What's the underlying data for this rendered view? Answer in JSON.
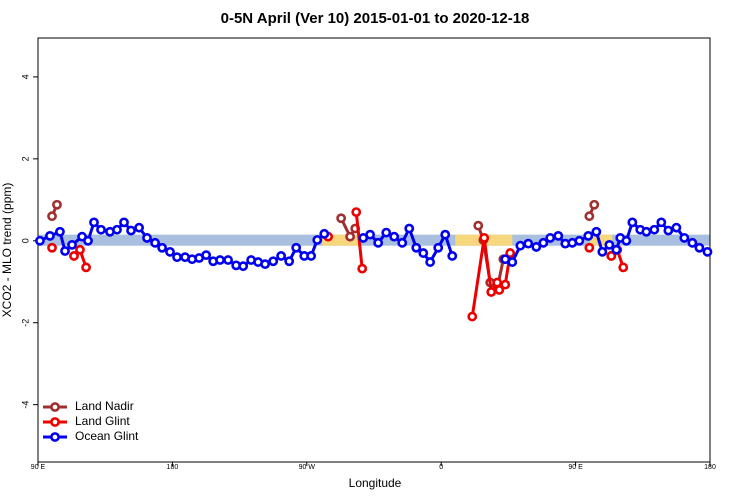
{
  "chart_data": {
    "type": "line",
    "title": "0-5N April (Ver 10)   2015-01-01 to 2020-12-18",
    "x_label": "Longitude",
    "y_label": "XCO2 - MLO trend (ppm)",
    "xlim": [
      90,
      540
    ],
    "ylim": [
      -5.4,
      4.95
    ],
    "xticks": [
      {
        "value": 90,
        "label": "90 E"
      },
      {
        "value": 180,
        "label": "180"
      },
      {
        "value": 270,
        "label": "90 W"
      },
      {
        "value": 360,
        "label": "0"
      },
      {
        "value": 450,
        "label": "90 E"
      },
      {
        "value": 540,
        "label": "180"
      }
    ],
    "yticks": [
      -4,
      -2,
      0,
      2,
      4
    ],
    "grid": false,
    "legend": "bottom-left",
    "bands": {
      "y": [
        -0.12,
        0.15
      ],
      "spans": [
        {
          "color": "#a9bfe0",
          "x": [
            90,
            540
          ]
        },
        {
          "color": "#f7d77e",
          "x": [
            280.3,
            304.4
          ]
        },
        {
          "color": "#f7d77e",
          "x": [
            369.4,
            407.6
          ]
        },
        {
          "color": "#f7d77e",
          "x": [
            459.8,
            474.6
          ]
        }
      ]
    },
    "series": [
      {
        "name": "Land Nadir",
        "color": "#a03030",
        "x": [
          99.4,
          102.7,
          null,
          293,
          299,
          302.4,
          null,
          384.8,
          388.2,
          392.8,
          397.5,
          401.6,
          null,
          459.2,
          462.5,
          null,
          473.9
        ],
        "values": [
          0.6,
          0.88,
          null,
          0.55,
          0.1,
          0.3,
          null,
          0.37,
          0.02,
          -1.02,
          -1.17,
          -0.45,
          null,
          0.6,
          0.88,
          null,
          -0.37
        ]
      },
      {
        "name": "Land Glint",
        "color": "#ee0000",
        "x": [
          99.4,
          null,
          114.1,
          118.1,
          122.2,
          null,
          284.3,
          null,
          303.1,
          307.1,
          null,
          380.8,
          388.8,
          393.5,
          397.5,
          398.9,
          402.9,
          406.2,
          null,
          459.2,
          null,
          473.9,
          477.9,
          481.9
        ],
        "values": [
          -0.17,
          null,
          -0.37,
          -0.22,
          -0.65,
          null,
          0.1,
          null,
          0.7,
          -0.68,
          null,
          -1.85,
          0.07,
          -1.25,
          -1.02,
          -1.2,
          -1.07,
          -0.3,
          null,
          -0.17,
          null,
          -0.37,
          -0.22,
          -0.65
        ]
      },
      {
        "name": "Ocean Glint",
        "color": "#0000ee",
        "x": [
          91.3,
          98,
          104.7,
          108.1,
          112.8,
          119.5,
          123.5,
          127.5,
          132.2,
          138.2,
          142.9,
          147.6,
          152.3,
          157.7,
          163,
          168.4,
          173.1,
          178.4,
          183.1,
          188.5,
          193.2,
          197.9,
          202.6,
          207.3,
          211.9,
          217.3,
          222.7,
          227.4,
          232.7,
          237.4,
          242.1,
          247.5,
          252.8,
          258.2,
          262.9,
          268.3,
          272.9,
          277,
          281.7,
          null,
          307.8,
          312.4,
          317.8,
          323.2,
          328.5,
          333.9,
          338.6,
          343.3,
          348,
          352.6,
          358,
          362.7,
          367.4,
          null,
          402.9,
          407.6,
          413,
          418.3,
          423.7,
          428.4,
          433,
          438.4,
          443.1,
          447.8,
          452.5,
          458.5,
          463.9,
          467.9,
          472.6,
          477.3,
          479.9,
          484,
          488,
          493.3,
          497.4,
          502.7,
          507.4,
          512.1,
          517.5,
          522.8,
          528.2,
          532.9,
          538.3
        ],
        "values": [
          0.0,
          0.12,
          0.22,
          -0.25,
          -0.1,
          0.1,
          0.0,
          0.45,
          0.27,
          0.22,
          0.27,
          0.45,
          0.25,
          0.32,
          0.07,
          -0.05,
          -0.17,
          -0.27,
          -0.4,
          -0.4,
          -0.45,
          -0.42,
          -0.35,
          -0.5,
          -0.47,
          -0.47,
          -0.6,
          -0.62,
          -0.47,
          -0.52,
          -0.57,
          -0.5,
          -0.37,
          -0.5,
          -0.17,
          -0.37,
          -0.37,
          0.02,
          0.17,
          null,
          0.07,
          0.15,
          -0.05,
          0.2,
          0.1,
          -0.05,
          0.3,
          -0.17,
          -0.3,
          -0.52,
          -0.17,
          0.15,
          -0.37,
          null,
          -0.45,
          -0.52,
          -0.12,
          -0.07,
          -0.15,
          -0.05,
          0.07,
          0.12,
          -0.07,
          -0.05,
          0.0,
          0.12,
          0.22,
          -0.27,
          -0.1,
          -0.22,
          0.07,
          0.0,
          0.45,
          0.27,
          0.22,
          0.27,
          0.45,
          0.25,
          0.32,
          0.07,
          -0.05,
          -0.17,
          -0.27
        ]
      }
    ]
  }
}
